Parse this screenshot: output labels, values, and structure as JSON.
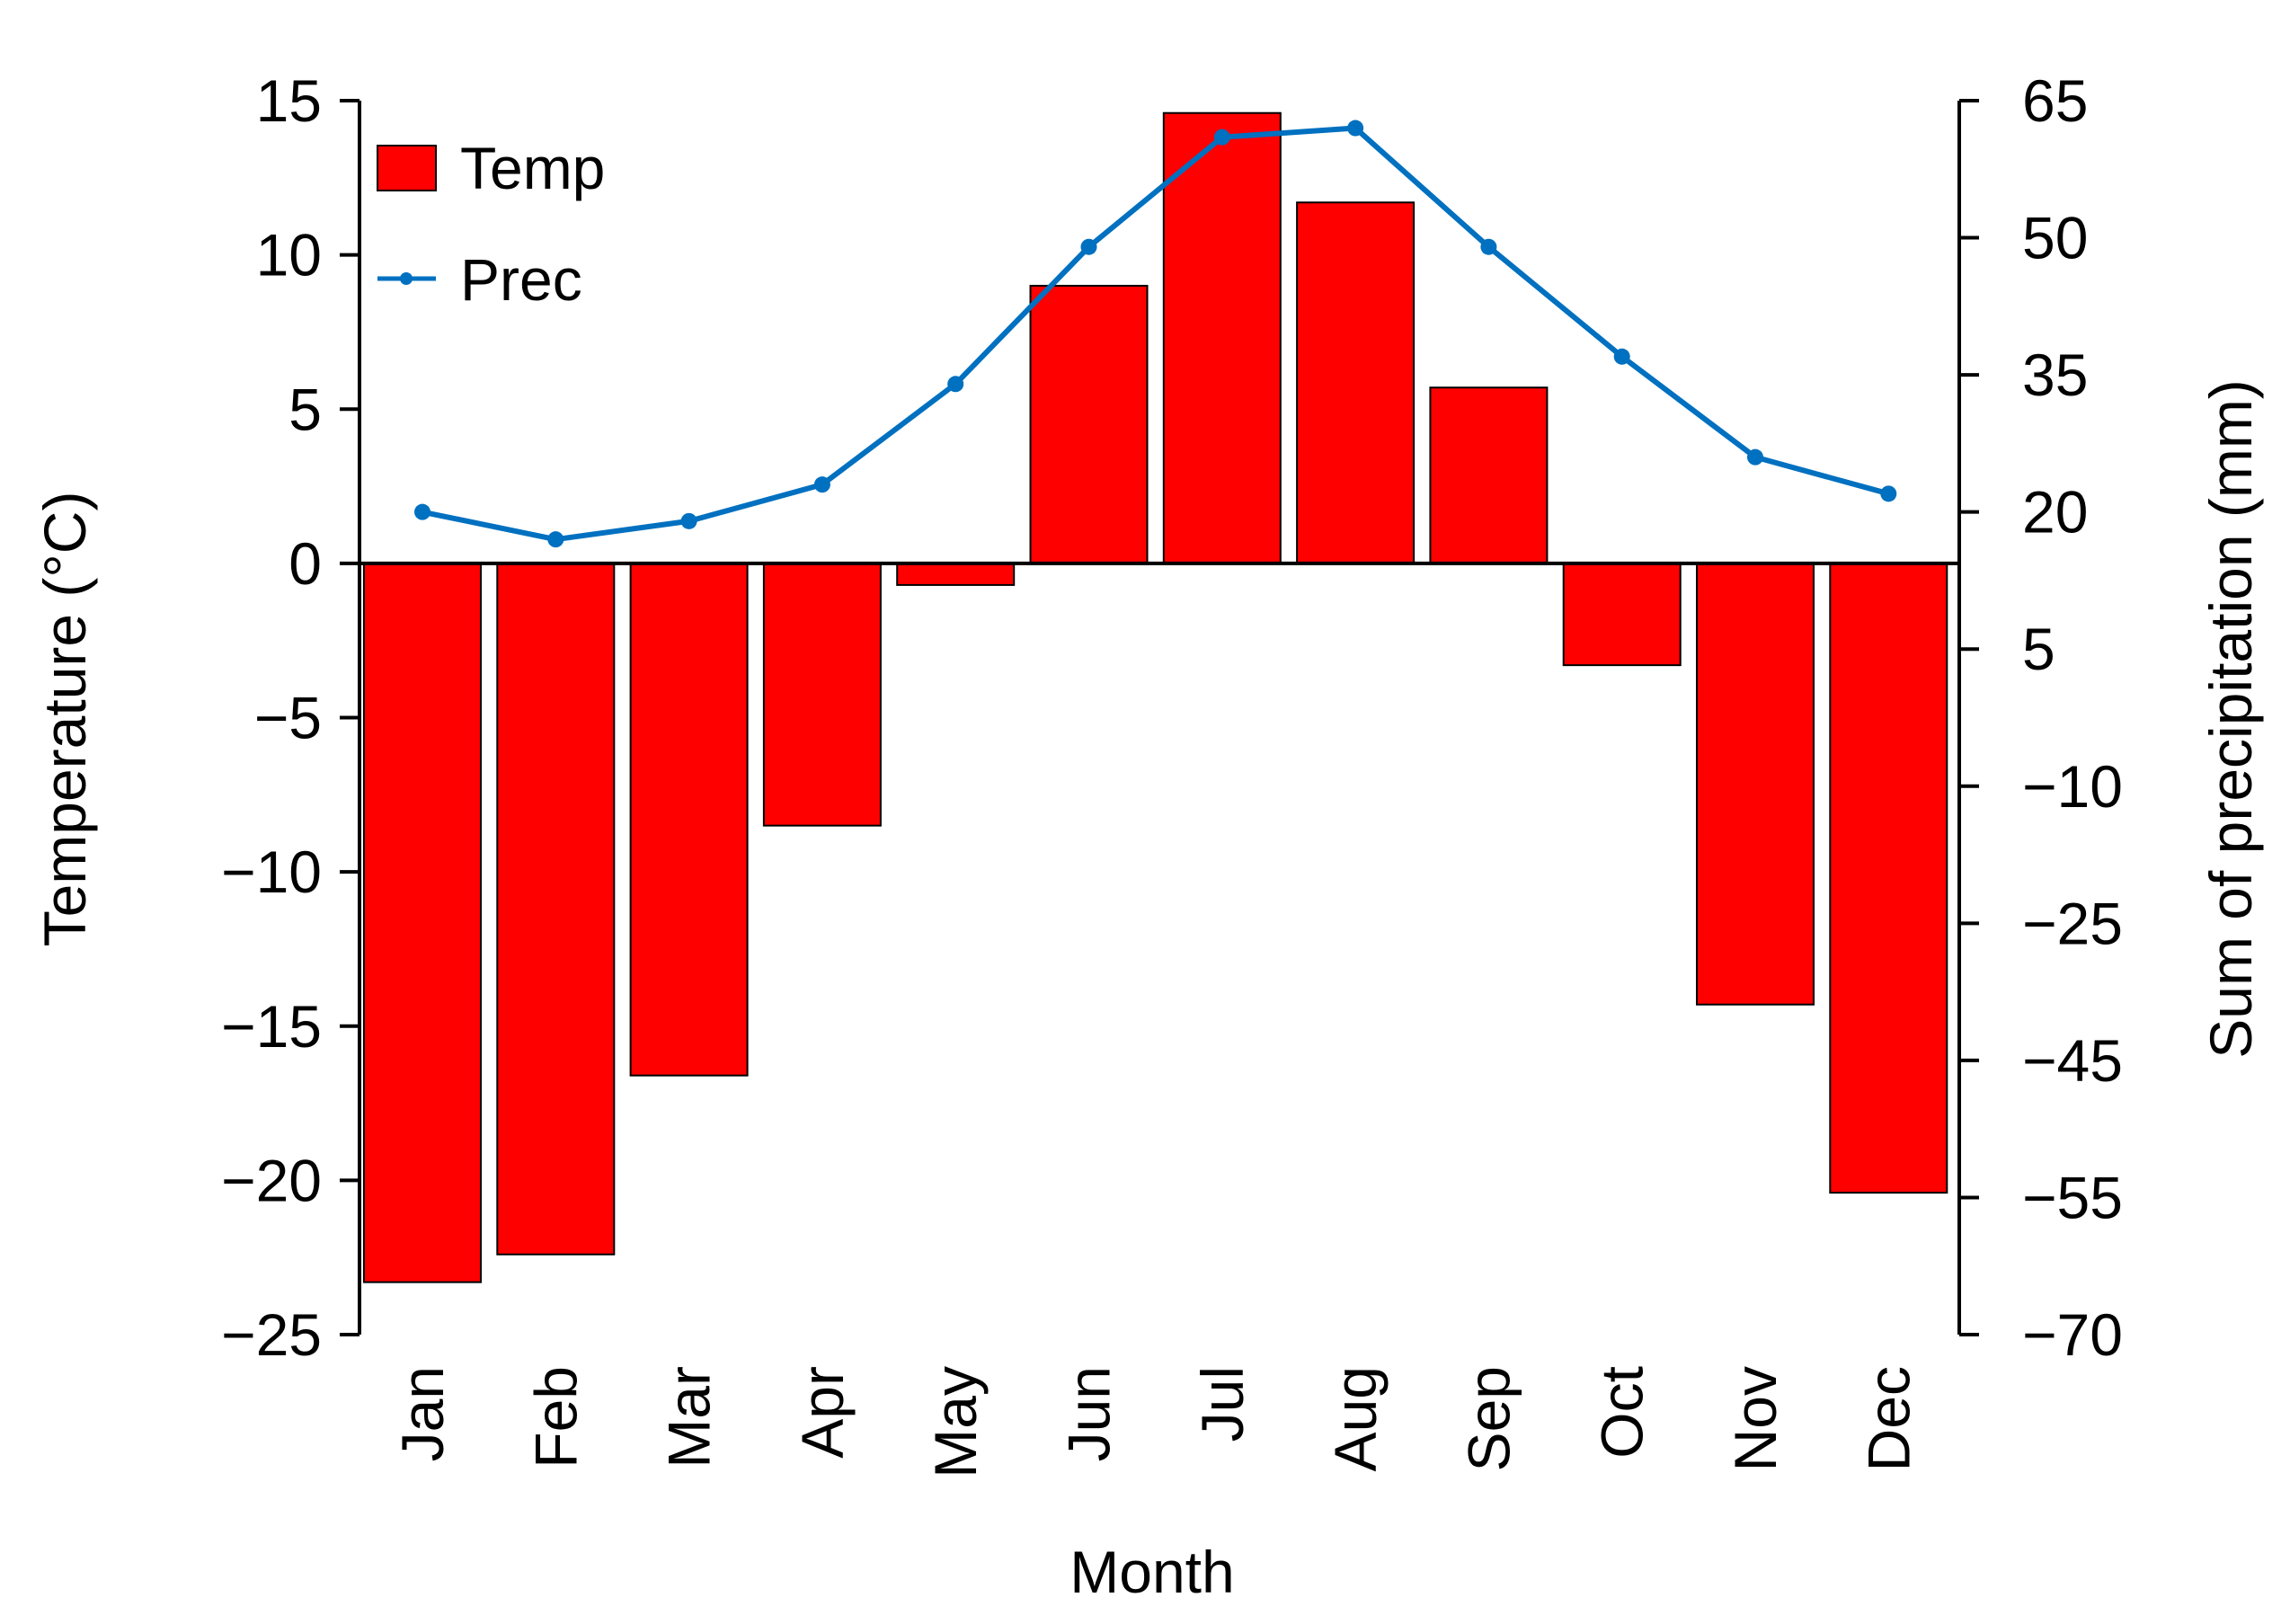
{
  "chart_data": {
    "type": "bar",
    "title": "",
    "xlabel": "Month",
    "ylabel": "Temperature (°C)",
    "y2label": "Sum of precipitation (mm)",
    "categories": [
      "Jan",
      "Feb",
      "Mar",
      "Apr",
      "May",
      "Jun",
      "Jul",
      "Aug",
      "Sep",
      "Oct",
      "Nov",
      "Dec"
    ],
    "series": [
      {
        "name": "Temp",
        "type": "bar",
        "axis": "left",
        "color": "#ff0000",
        "values": [
          -23.3,
          -22.4,
          -16.6,
          -8.5,
          -0.7,
          9.0,
          14.6,
          11.7,
          5.7,
          -3.3,
          -14.3,
          -20.4
        ]
      },
      {
        "name": "Prec",
        "type": "line",
        "axis": "right",
        "color": "#0070c0",
        "values": [
          20,
          17,
          19,
          23,
          34,
          49,
          61,
          62,
          49,
          37,
          26,
          22
        ]
      }
    ],
    "ylim": [
      -25,
      15
    ],
    "yticks": [
      15,
      10,
      5,
      0,
      -5,
      -10,
      -15,
      -20,
      -25
    ],
    "ytick_labels": [
      "15",
      "10",
      "5",
      "0",
      "−5",
      "−10",
      "−15",
      "−20",
      "−25"
    ],
    "y2ticks": [
      65,
      50,
      35,
      20,
      5,
      -10,
      -25,
      -45,
      -55,
      -70
    ],
    "y2tick_labels": [
      "65",
      "50",
      "35",
      "20",
      "5",
      "−10",
      "−25",
      "−45",
      "−55",
      "−70"
    ],
    "legend": {
      "position": "top-left",
      "entries": [
        {
          "label": "Temp",
          "marker": "box",
          "color": "#ff0000"
        },
        {
          "label": "Prec",
          "marker": "line-dot",
          "color": "#0070c0"
        }
      ]
    },
    "grid": false
  }
}
